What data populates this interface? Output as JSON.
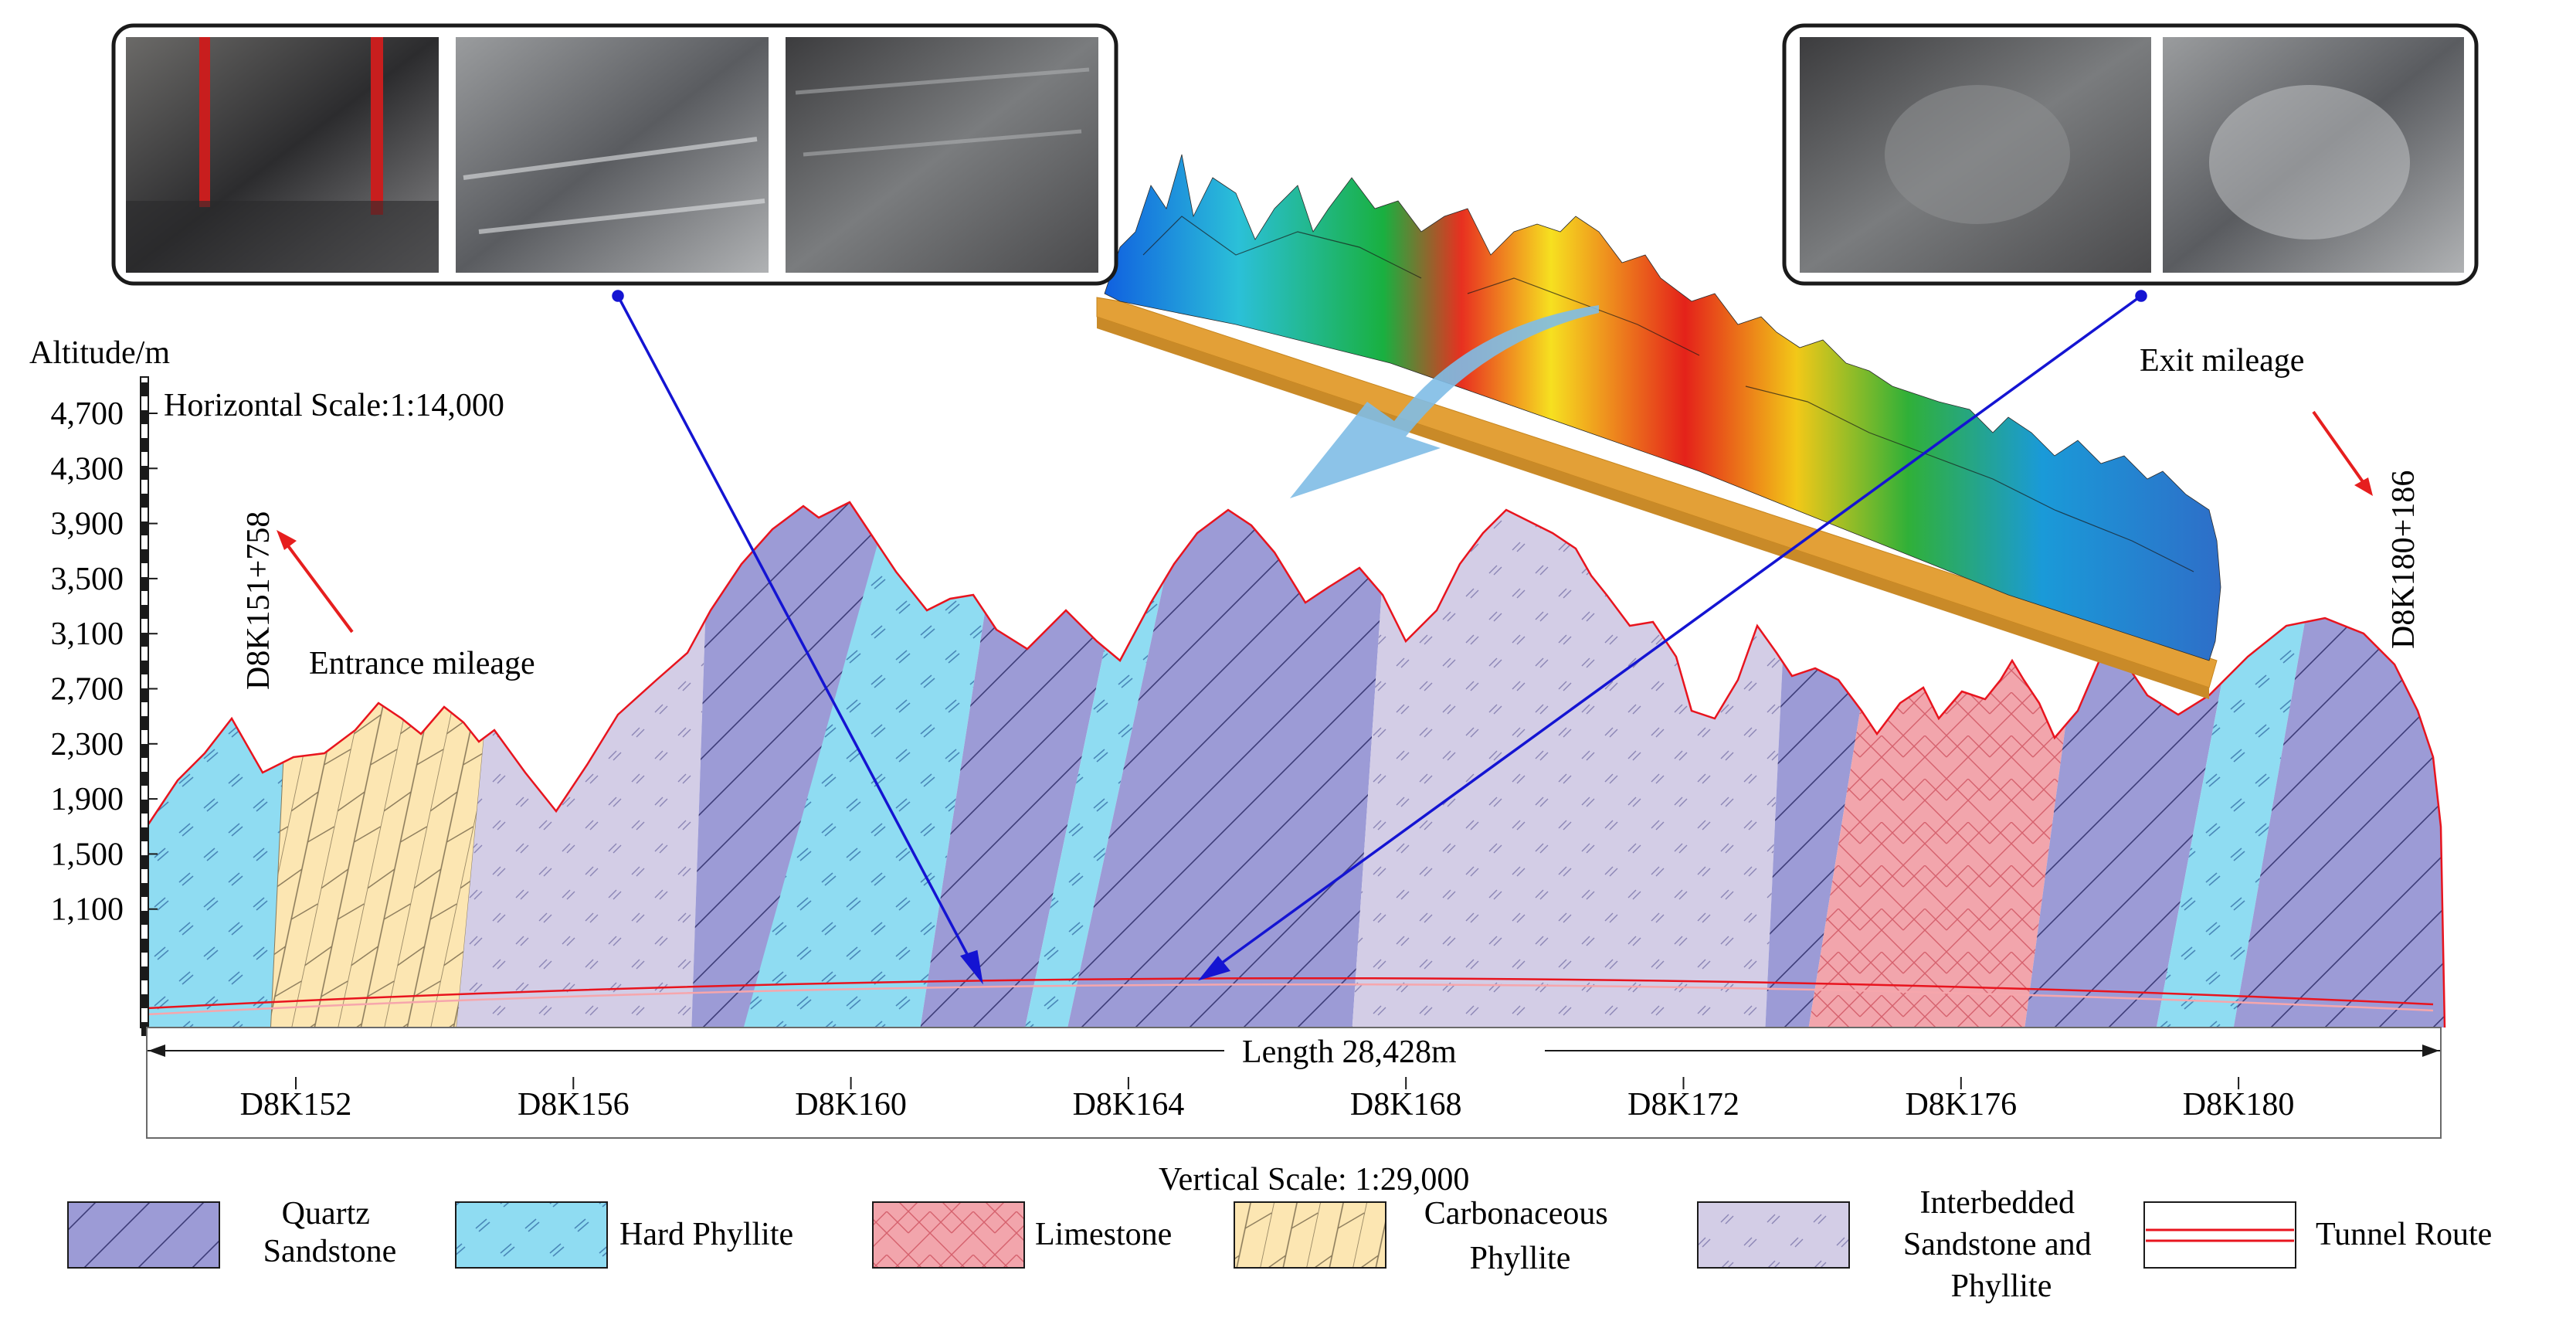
{
  "axis": {
    "y_title": "Altitude/m",
    "y_ticks": [
      "4,700",
      "4,300",
      "3,900",
      "3,500",
      "3,100",
      "2,700",
      "2,300",
      "1,900",
      "1,500",
      "1,100"
    ]
  },
  "scales": {
    "horizontal": "Horizontal Scale:1:14,000",
    "vertical": "Vertical Scale: 1:29,000"
  },
  "mileage": {
    "entrance_label": "Entrance mileage",
    "entrance_value": "D8K151+758",
    "exit_label": "Exit mileage",
    "exit_value": "D8K180+186"
  },
  "length_label": "Length 28,428m",
  "stations": [
    "D8K152",
    "D8K156",
    "D8K160",
    "D8K164",
    "D8K168",
    "D8K172",
    "D8K176",
    "D8K180"
  ],
  "legend": [
    {
      "key": "quartz",
      "lines": [
        "Quartz",
        "Sandstone"
      ]
    },
    {
      "key": "hard",
      "lines": [
        "Hard Phyllite"
      ]
    },
    {
      "key": "lime",
      "lines": [
        "Limestone"
      ]
    },
    {
      "key": "carb",
      "lines": [
        "Carbonaceous",
        "Phyllite"
      ]
    },
    {
      "key": "inter",
      "lines": [
        "Interbedded",
        "Sandstone and",
        "Phyllite"
      ]
    },
    {
      "key": "route",
      "lines": [
        "Tunnel Route"
      ]
    }
  ],
  "colors": {
    "quartz_sandstone": "#9c9bd6",
    "hard_phyllite": "#8fdcf2",
    "limestone": "#f2a5ac",
    "carbonaceous_phyllite": "#fce6b2",
    "interbedded": "#d3cde6",
    "profile_line": "#e8141e",
    "callout_line": "#1414d2",
    "arrow_red": "#e61e1e",
    "flow_arrow": "#7fbde6"
  }
}
